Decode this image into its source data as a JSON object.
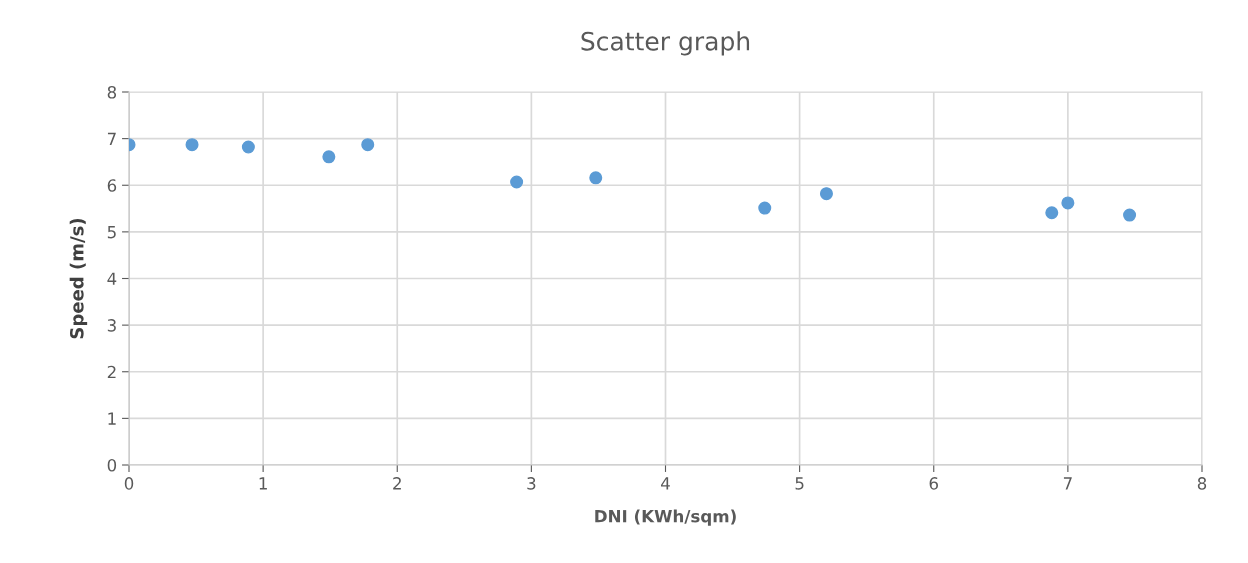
{
  "chart_data": {
    "type": "scatter",
    "title": "Scatter graph",
    "xlabel": "DNI (KWh/sqm)",
    "ylabel": "Speed (m/s)",
    "x": [
      0,
      0.47,
      0.89,
      1.49,
      1.78,
      2.89,
      3.48,
      4.74,
      5.2,
      6.88,
      7.0,
      7.46
    ],
    "series": [
      {
        "color": "#5b9bd5",
        "values": [
          6.87,
          6.87,
          6.82,
          6.61,
          6.87,
          6.07,
          6.16,
          5.51,
          5.82,
          5.41,
          5.62,
          5.36
        ]
      }
    ],
    "xlim": [
      0,
      8
    ],
    "xticks": [
      0,
      1,
      2,
      3,
      4,
      5,
      6,
      7,
      8
    ],
    "ylim": [
      0,
      8
    ],
    "yticks": [
      0,
      1,
      2,
      3,
      4,
      5,
      6,
      7,
      8
    ],
    "grid": true,
    "marker": "circle"
  }
}
